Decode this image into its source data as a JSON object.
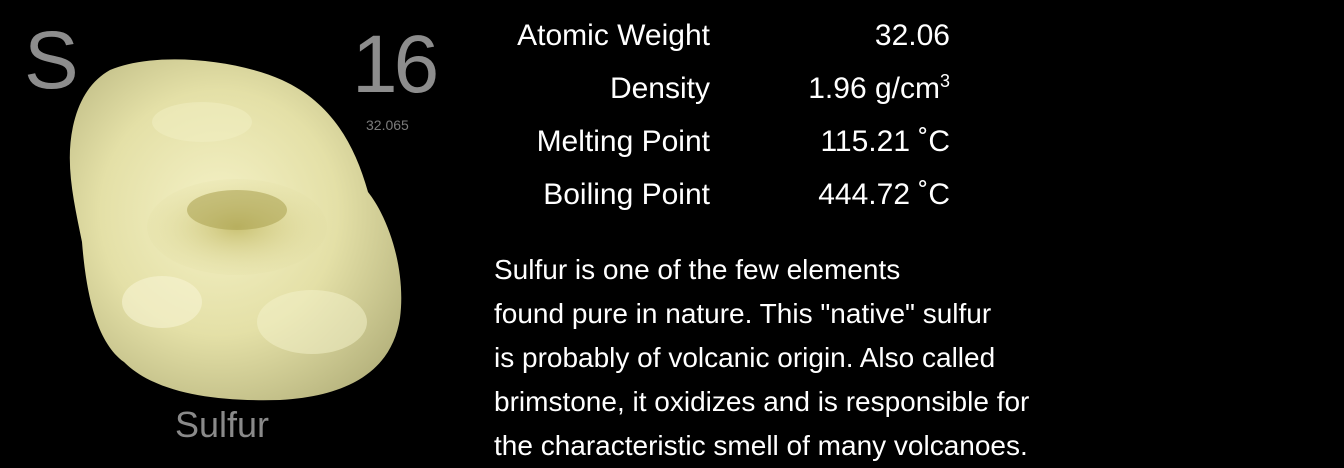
{
  "element": {
    "symbol": "S",
    "atomic_number": "16",
    "atomic_weight_small": "32.065",
    "name": "Sulfur"
  },
  "properties": {
    "atomic_weight": {
      "label": "Atomic Weight",
      "value": "32.06"
    },
    "density": {
      "label": "Density",
      "value": "1.96 g/cm",
      "sup": "3"
    },
    "melting_point": {
      "label": "Melting Point",
      "value": "115.21 ˚C"
    },
    "boiling_point": {
      "label": "Boiling Point",
      "value": "444.72 ˚C"
    }
  },
  "description": "Sulfur is one of the few elements\nfound pure in nature.  This \"native\" sulfur\nis probably of volcanic origin.  Also called\nbrimstone, it oxidizes and is responsible for\nthe characteristic smell of many volcanoes.",
  "colors": {
    "background": "#000000",
    "muted_text": "#8d8d8d",
    "sulfur_rock": "#e6e2a8"
  }
}
